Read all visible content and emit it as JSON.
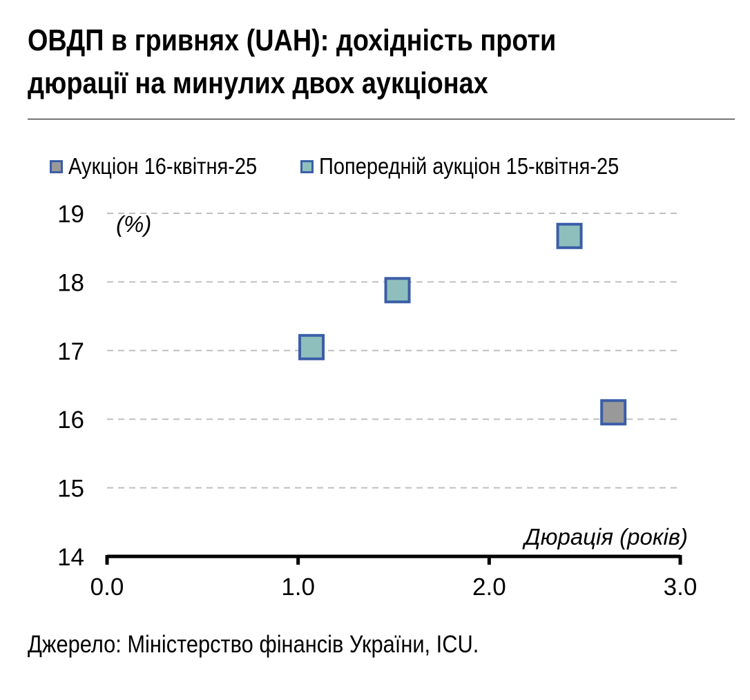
{
  "title": {
    "line1": "ОВДП в гривнях (UAH): дохідність проти",
    "line2": "дюрації на минулих двох аукціонах"
  },
  "source": "Джерело: Міністерство фінансів України, ICU.",
  "colors": {
    "marker_border": "#3b5ea8",
    "current_fill": "#999999",
    "previous_fill": "#8fbfbd",
    "grid": "#bfbfbf",
    "axis": "#000000"
  },
  "chart_data": {
    "type": "scatter",
    "xlabel": "Дюрація (років)",
    "ylabel": "(%)",
    "xlim": [
      0,
      3
    ],
    "ylim": [
      14,
      19
    ],
    "x_ticks": [
      "0.0",
      "1.0",
      "2.0",
      "3.0"
    ],
    "y_ticks": [
      "14",
      "15",
      "16",
      "17",
      "18",
      "19"
    ],
    "grid": "horizontal dashed",
    "legend_position": "top",
    "series": [
      {
        "name": "Аукціон 16-квітня-25",
        "color": "#999999",
        "points": [
          {
            "x": 2.65,
            "y": 16.1
          }
        ]
      },
      {
        "name": "Попередній аукціон 15-квітня-25",
        "color": "#8fbfbd",
        "points": [
          {
            "x": 1.07,
            "y": 17.05
          },
          {
            "x": 1.52,
            "y": 17.88
          },
          {
            "x": 2.42,
            "y": 18.67
          }
        ]
      }
    ]
  }
}
